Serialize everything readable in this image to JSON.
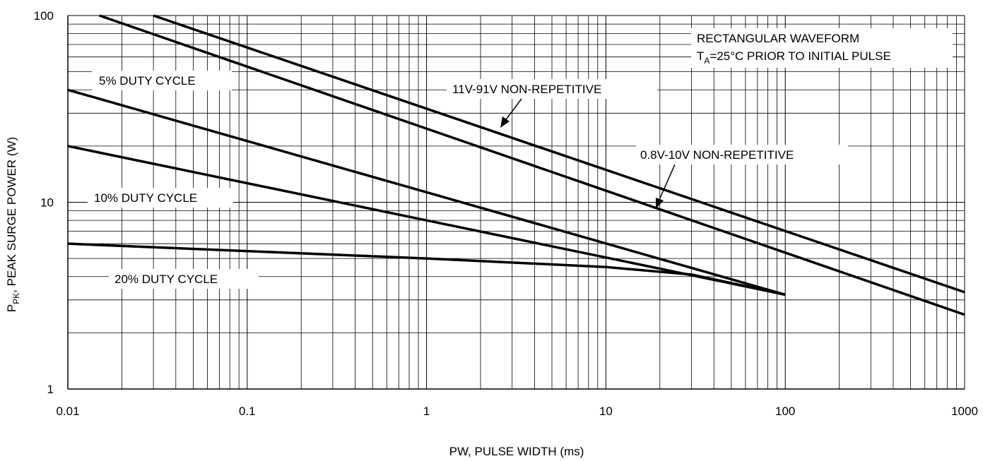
{
  "chart_data": {
    "type": "line",
    "xlabel": "PW, PULSE WIDTH (ms)",
    "ylabel": {
      "main": "P",
      "sub": "PK",
      "rest": ", PEAK SURGE POWER (W)"
    },
    "x_scale": "log",
    "y_scale": "log",
    "xlim": [
      0.01,
      1000
    ],
    "ylim": [
      1,
      100
    ],
    "x_ticks": [
      "0.01",
      "0.1",
      "1",
      "10",
      "100",
      "1000"
    ],
    "y_ticks": [
      "1",
      "10",
      "100"
    ],
    "grid": true,
    "series": [
      {
        "name": "11V-91V NON-REPETITIVE",
        "x": [
          0.03,
          1000
        ],
        "y": [
          100,
          3.3
        ]
      },
      {
        "name": "0.8V-10V NON-REPETITIVE",
        "x": [
          0.015,
          1000
        ],
        "y": [
          100,
          2.5
        ]
      },
      {
        "name": "5% DUTY CYCLE",
        "x": [
          0.01,
          100
        ],
        "y": [
          40,
          3.2
        ]
      },
      {
        "name": "10% DUTY CYCLE",
        "x": [
          0.01,
          100
        ],
        "y": [
          20,
          3.2
        ]
      },
      {
        "name": "20% DUTY CYCLE",
        "x": [
          0.01,
          1,
          10,
          30,
          100
        ],
        "y": [
          6,
          5,
          4.5,
          4.1,
          3.2
        ]
      }
    ],
    "annotations": {
      "waveform_line1": "RECTANGULAR WAVEFORM",
      "waveform_line2_t": "T",
      "waveform_line2_sub": "A",
      "waveform_line2_rest": "=25°C PRIOR TO INITIAL PULSE",
      "label_11v": "11V-91V NON-REPETITIVE",
      "label_08v": "0.8V-10V NON-REPETITIVE",
      "label_5pct": "5% DUTY CYCLE",
      "label_10pct": "10% DUTY CYCLE",
      "label_20pct": "20% DUTY CYCLE"
    }
  }
}
